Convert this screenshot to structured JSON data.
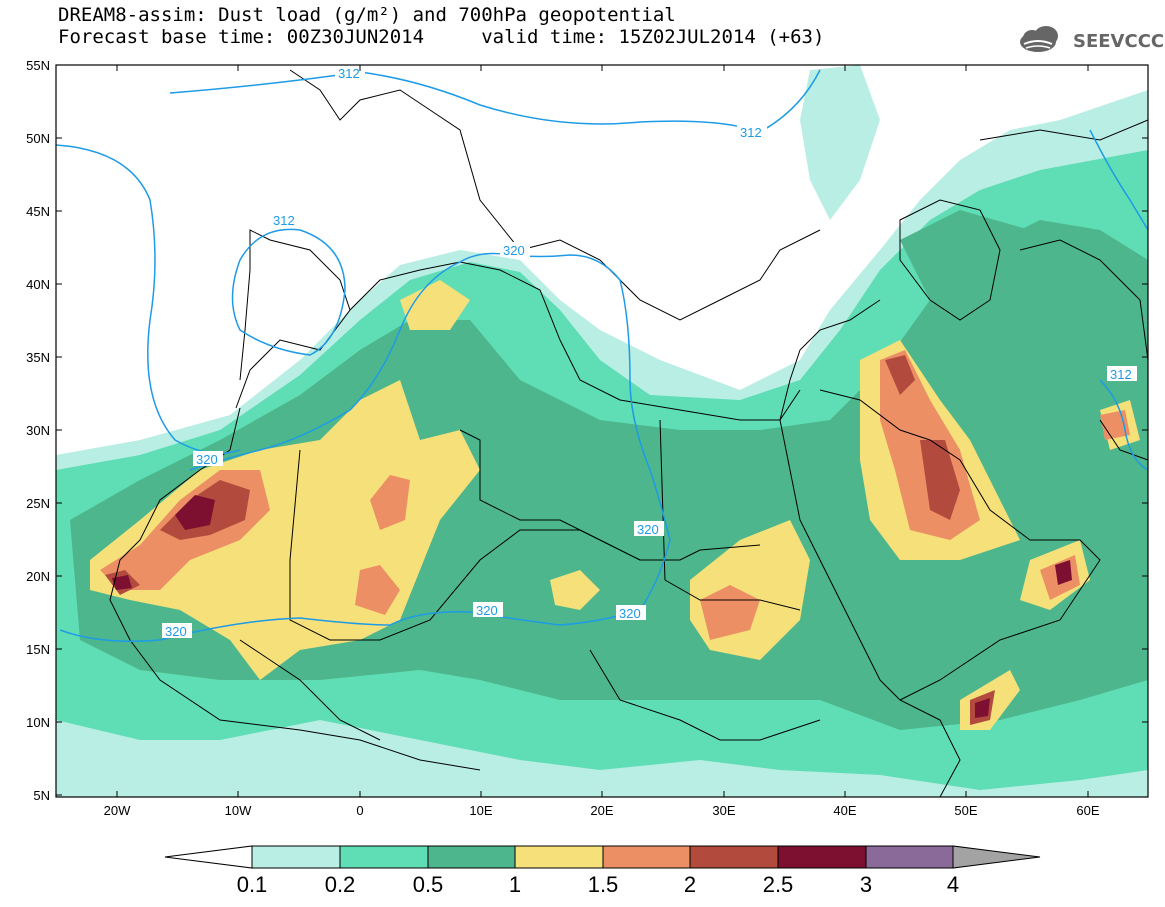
{
  "title": {
    "line1": "DREAM8-assim: Dust load (g/m²) and 700hPa geopotential",
    "line2": "Forecast base time: 00Z30JUN2014     valid time: 15Z02JUL2014 (+63)"
  },
  "logo": {
    "text": "SEEVCCC",
    "icon": "cloud-logo-icon"
  },
  "axes": {
    "lat_labels": [
      "55N",
      "50N",
      "45N",
      "40N",
      "35N",
      "30N",
      "25N",
      "20N",
      "15N",
      "10N",
      "5N"
    ],
    "lon_labels": [
      "20W",
      "10W",
      "0",
      "10E",
      "20E",
      "30E",
      "40E",
      "50E",
      "60E"
    ]
  },
  "contours": {
    "labels": [
      "312",
      "312",
      "312",
      "312",
      "320",
      "320",
      "320",
      "320",
      "320",
      "320"
    ]
  },
  "colorbar": {
    "labels": [
      "0.1",
      "0.2",
      "0.5",
      "1",
      "1.5",
      "2",
      "2.5",
      "3",
      "4"
    ],
    "colors": [
      "#ffffff",
      "#b9eee4",
      "#5fddb4",
      "#4db68c",
      "#f5e07a",
      "#ec8f65",
      "#b24b3d",
      "#7d1030",
      "#8a6a98",
      "#a3a3a3"
    ]
  }
}
